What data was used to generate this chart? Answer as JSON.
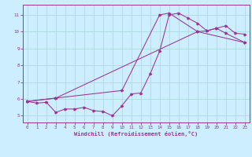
{
  "bg_color": "#cceeff",
  "line_color": "#993399",
  "grid_color": "#aadddd",
  "xlabel": "Windchill (Refroidissement éolien,°C)",
  "ylabel_ticks": [
    5,
    6,
    7,
    8,
    9,
    10,
    11
  ],
  "xlim": [
    -0.5,
    23.5
  ],
  "ylim": [
    4.6,
    11.6
  ],
  "xticks": [
    0,
    1,
    2,
    3,
    4,
    5,
    6,
    7,
    8,
    9,
    10,
    11,
    12,
    13,
    14,
    15,
    16,
    17,
    18,
    19,
    20,
    21,
    22,
    23
  ],
  "line1_x": [
    0,
    1,
    2,
    3,
    4,
    5,
    6,
    7,
    8,
    9,
    10,
    11,
    12,
    13,
    14,
    15,
    16,
    17,
    18,
    19,
    20,
    21,
    22,
    23
  ],
  "line1_y": [
    5.85,
    5.75,
    5.8,
    5.2,
    5.4,
    5.4,
    5.5,
    5.3,
    5.25,
    5.0,
    5.6,
    6.3,
    6.35,
    7.5,
    8.85,
    11.0,
    11.1,
    10.8,
    10.5,
    10.05,
    10.2,
    10.35,
    9.9,
    9.85
  ],
  "line2_x": [
    0,
    3,
    10,
    14,
    15,
    18,
    19,
    20,
    21,
    23
  ],
  "line2_y": [
    5.85,
    6.05,
    6.5,
    11.0,
    11.1,
    10.0,
    10.05,
    10.2,
    9.9,
    9.35
  ],
  "line3_x": [
    0,
    3,
    18,
    23
  ],
  "line3_y": [
    5.85,
    6.05,
    10.0,
    9.35
  ]
}
